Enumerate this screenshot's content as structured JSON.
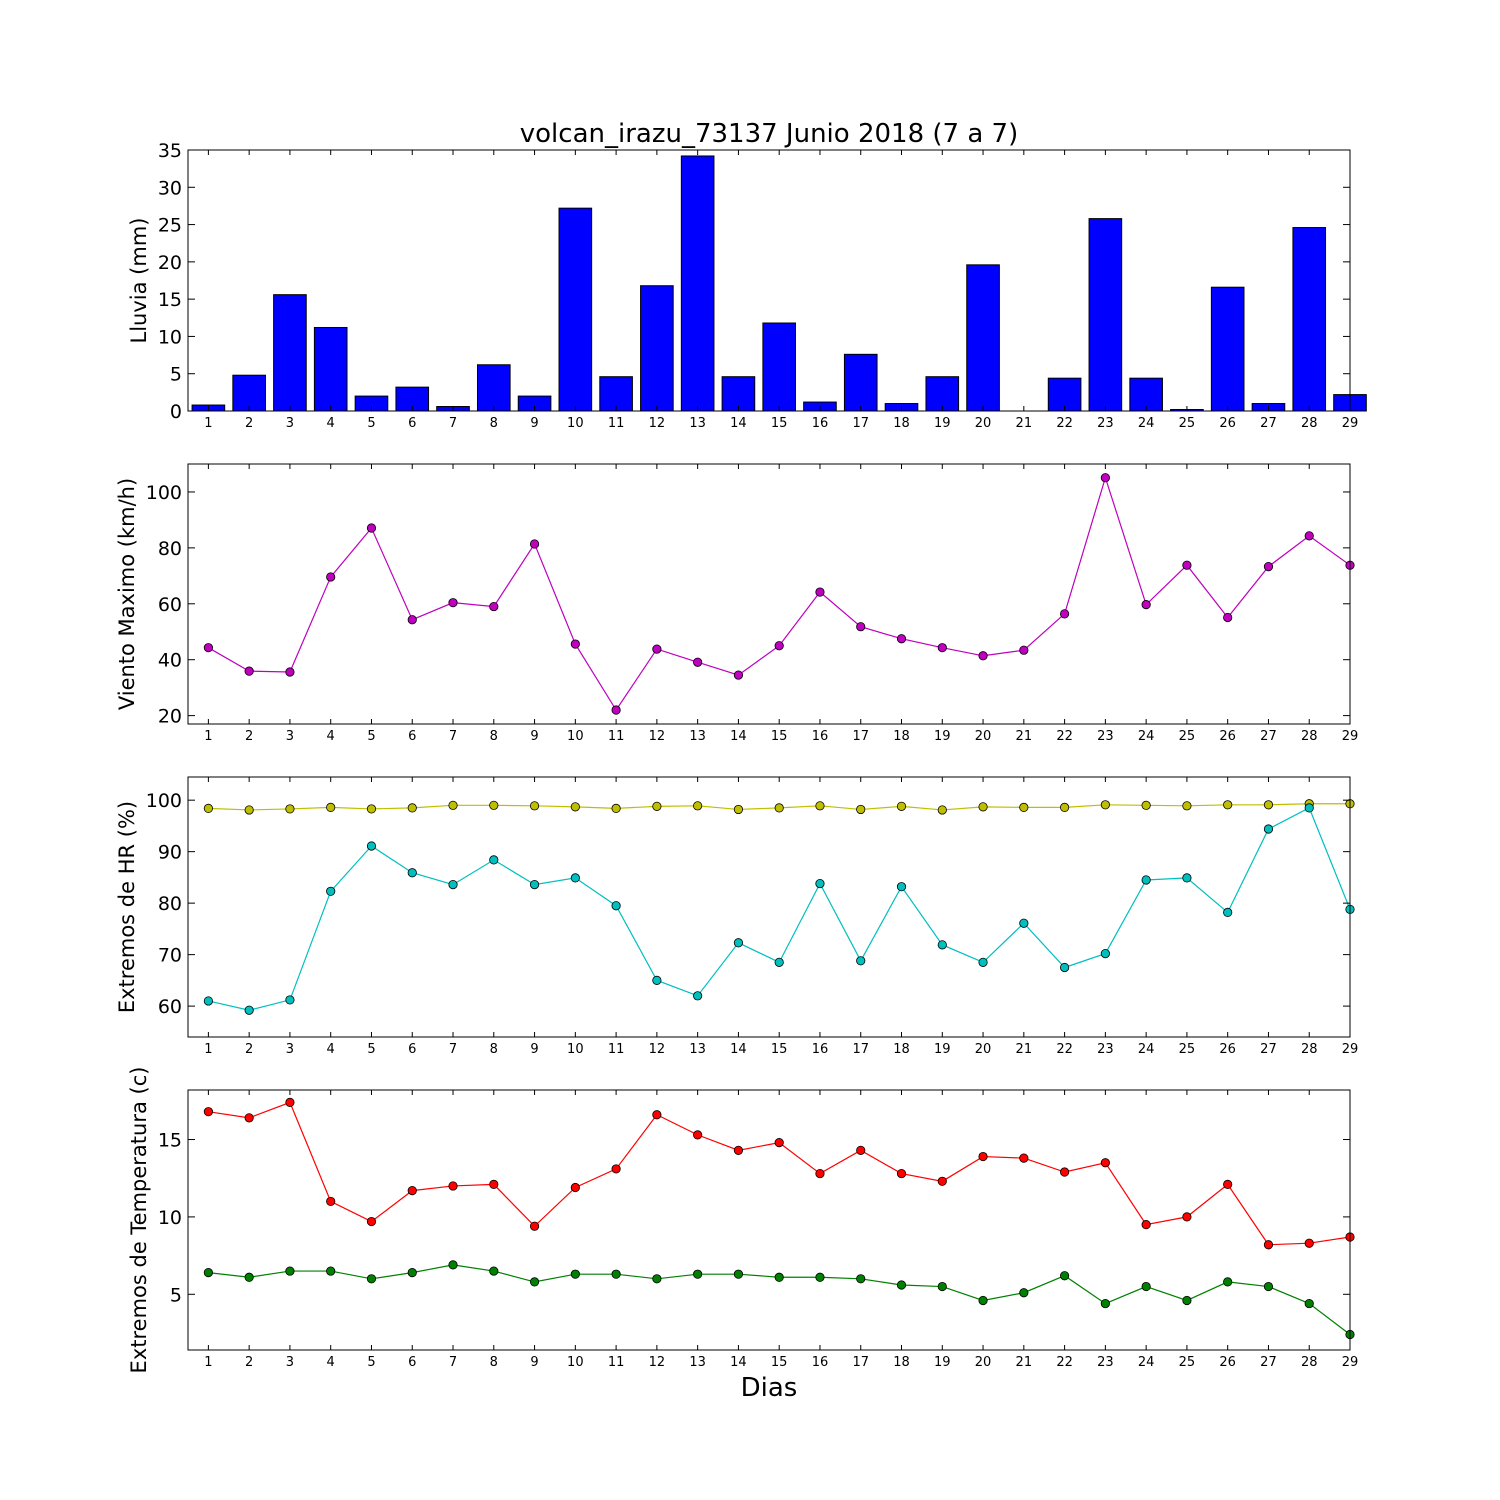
{
  "figure": {
    "title": "volcan_irazu_73137 Junio 2018  (7 a 7)",
    "xlabel": "Dias"
  },
  "chart_data": [
    {
      "type": "bar",
      "ylabel": "Lluvia (mm)",
      "ylim": [
        0,
        35
      ],
      "yticks": [
        0,
        5,
        10,
        15,
        20,
        25,
        30,
        35
      ],
      "categories": [
        1,
        2,
        3,
        4,
        5,
        6,
        7,
        8,
        9,
        10,
        11,
        12,
        13,
        14,
        15,
        16,
        17,
        18,
        19,
        20,
        21,
        22,
        23,
        24,
        25,
        26,
        27,
        28,
        29
      ],
      "series": [
        {
          "color": "#0000ff",
          "values": [
            0.8,
            4.8,
            15.6,
            11.2,
            2.0,
            3.2,
            0.6,
            6.2,
            2.0,
            27.2,
            4.6,
            16.8,
            34.2,
            4.6,
            11.8,
            1.2,
            7.6,
            1.0,
            4.6,
            19.6,
            0,
            4.4,
            25.8,
            4.4,
            0.2,
            16.6,
            1.0,
            24.6,
            2.2
          ]
        }
      ],
      "grid": false
    },
    {
      "type": "line",
      "ylabel": "Viento Maximo (km/h)",
      "ylim": [
        17,
        110
      ],
      "yticks": [
        20,
        40,
        60,
        80,
        100
      ],
      "x": [
        1,
        2,
        3,
        4,
        5,
        6,
        7,
        8,
        9,
        10,
        11,
        12,
        13,
        14,
        15,
        16,
        17,
        18,
        19,
        20,
        21,
        22,
        23,
        24,
        25,
        26,
        27,
        28,
        29
      ],
      "series": [
        {
          "color": "#bf00bf",
          "values": [
            44.3,
            35.9,
            35.6,
            69.6,
            87.1,
            54.3,
            60.4,
            59.0,
            81.4,
            45.6,
            22.0,
            43.8,
            39.1,
            34.5,
            45.0,
            64.2,
            51.8,
            47.5,
            44.3,
            41.4,
            43.4,
            56.4,
            105.1,
            59.7,
            73.8,
            55.1,
            73.3,
            84.3,
            73.8
          ]
        }
      ],
      "grid": false
    },
    {
      "type": "line",
      "ylabel": "Extremos de HR (%)",
      "ylim": [
        54,
        104.5
      ],
      "yticks": [
        60,
        70,
        80,
        90,
        100
      ],
      "x": [
        1,
        2,
        3,
        4,
        5,
        6,
        7,
        8,
        9,
        10,
        11,
        12,
        13,
        14,
        15,
        16,
        17,
        18,
        19,
        20,
        21,
        22,
        23,
        24,
        25,
        26,
        27,
        28,
        29
      ],
      "series": [
        {
          "color": "#bfbf00",
          "values": [
            98.4,
            98.1,
            98.3,
            98.6,
            98.3,
            98.5,
            99.0,
            99.0,
            98.9,
            98.7,
            98.4,
            98.8,
            98.9,
            98.2,
            98.5,
            98.9,
            98.2,
            98.8,
            98.1,
            98.7,
            98.6,
            98.6,
            99.1,
            99.0,
            98.9,
            99.1,
            99.1,
            99.3,
            99.3
          ]
        },
        {
          "color": "#00bfbf",
          "values": [
            61.0,
            59.2,
            61.2,
            82.3,
            91.1,
            85.9,
            83.6,
            88.4,
            83.6,
            84.9,
            79.5,
            65.0,
            62.0,
            72.3,
            68.5,
            83.8,
            68.8,
            83.2,
            71.9,
            68.5,
            76.1,
            67.5,
            70.2,
            84.5,
            84.9,
            78.2,
            94.4,
            98.5,
            78.8
          ]
        }
      ],
      "grid": false
    },
    {
      "type": "line",
      "ylabel": "Extremos de Temperatura (c)",
      "ylim": [
        1.4,
        18.2
      ],
      "yticks": [
        5,
        10,
        15
      ],
      "x": [
        1,
        2,
        3,
        4,
        5,
        6,
        7,
        8,
        9,
        10,
        11,
        12,
        13,
        14,
        15,
        16,
        17,
        18,
        19,
        20,
        21,
        22,
        23,
        24,
        25,
        26,
        27,
        28,
        29
      ],
      "series": [
        {
          "color": "#ff0000",
          "values": [
            16.8,
            16.4,
            17.4,
            11.0,
            9.7,
            11.7,
            12.0,
            12.1,
            9.4,
            11.9,
            13.1,
            16.6,
            15.3,
            14.3,
            14.8,
            12.8,
            14.3,
            12.8,
            12.3,
            13.9,
            13.8,
            12.9,
            13.5,
            9.5,
            10.0,
            12.1,
            8.2,
            8.3,
            8.7
          ]
        },
        {
          "color": "#008000",
          "values": [
            6.4,
            6.1,
            6.5,
            6.5,
            6.0,
            6.4,
            6.9,
            6.5,
            5.8,
            6.3,
            6.3,
            6.0,
            6.3,
            6.3,
            6.1,
            6.1,
            6.0,
            5.6,
            5.5,
            4.6,
            5.1,
            6.2,
            4.4,
            5.5,
            4.6,
            5.8,
            5.5,
            4.4,
            2.4
          ]
        }
      ],
      "grid": false
    }
  ]
}
